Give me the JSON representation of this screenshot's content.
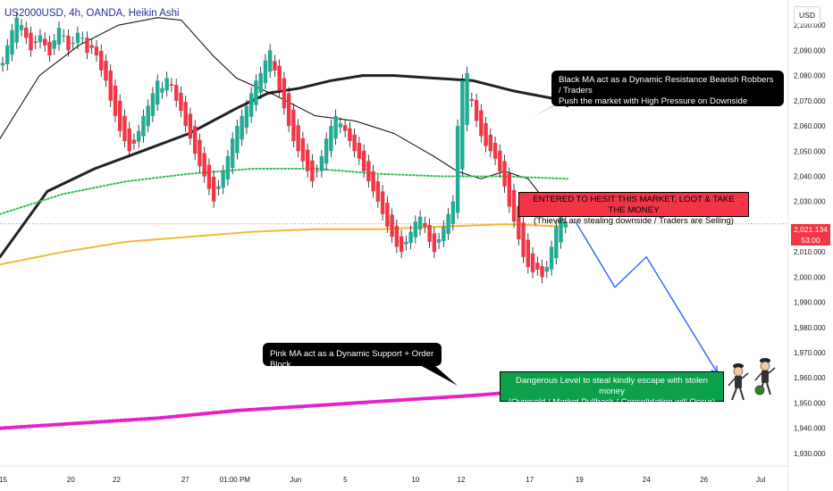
{
  "chart_header": {
    "ticker": "US2000USD, 4h, OANDA, Heikin Ashi",
    "currency": "USD"
  },
  "chart_data": {
    "type": "candlestick",
    "x_ticks": [
      "15",
      "20",
      "22",
      "27",
      "01:00 PM",
      "Jun",
      "5",
      "10",
      "12",
      "17",
      "19",
      "24",
      "26",
      "Jul"
    ],
    "y_ticks": [
      2100,
      2090,
      2080,
      2070,
      2060,
      2050,
      2040,
      2030,
      2020,
      2010,
      2000,
      1990,
      1980,
      1970,
      1960,
      1950,
      1940,
      1930
    ],
    "y_tick_labels": [
      "2,100.000",
      "2,090.000",
      "2,080.000",
      "2,070.000",
      "2,060.000",
      "2,050.000",
      "2,040.000",
      "2,030.000",
      "2,020.000",
      "2,010.000",
      "2,000.000",
      "1,990.000",
      "1,980.000",
      "1,970.000",
      "1,960.000",
      "1,950.000",
      "1,940.000",
      "1,930.000"
    ],
    "ylim": [
      1925,
      2110
    ],
    "last_price": 2021.134,
    "last_price_label": "2,021.134",
    "countdown": "53:00",
    "closes": [
      2085,
      2092,
      2098,
      2103,
      2100,
      2095,
      2090,
      2093,
      2096,
      2092,
      2088,
      2094,
      2099,
      2096,
      2090,
      2093,
      2097,
      2095,
      2089,
      2091,
      2088,
      2082,
      2078,
      2070,
      2064,
      2058,
      2054,
      2050,
      2053,
      2058,
      2064,
      2068,
      2073,
      2078,
      2075,
      2079,
      2076,
      2070,
      2066,
      2060,
      2055,
      2049,
      2044,
      2040,
      2035,
      2030,
      2036,
      2042,
      2048,
      2055,
      2060,
      2064,
      2068,
      2073,
      2078,
      2081,
      2086,
      2090,
      2082,
      2074,
      2067,
      2060,
      2054,
      2050,
      2046,
      2042,
      2038,
      2042,
      2048,
      2055,
      2060,
      2064,
      2061,
      2058,
      2054,
      2050,
      2047,
      2042,
      2038,
      2034,
      2030,
      2025,
      2020,
      2016,
      2012,
      2010,
      2014,
      2018,
      2022,
      2024,
      2020,
      2014,
      2010,
      2015,
      2020,
      2025,
      2030,
      2060,
      2078,
      2081,
      2070,
      2062,
      2056,
      2052,
      2050,
      2047,
      2042,
      2036,
      2028,
      2022,
      2015,
      2008,
      2004,
      2002,
      2003,
      2000,
      2004,
      2012,
      2020,
      2026,
      2022
    ],
    "series": [
      {
        "name": "Black MA",
        "color": "#222222",
        "values": [
          [
            0,
            2008
          ],
          [
            0.06,
            2034
          ],
          [
            0.12,
            2043
          ],
          [
            0.18,
            2050
          ],
          [
            0.24,
            2057
          ],
          [
            0.3,
            2067
          ],
          [
            0.34,
            2073
          ],
          [
            0.38,
            2075
          ],
          [
            0.42,
            2078
          ],
          [
            0.46,
            2080
          ],
          [
            0.5,
            2080
          ],
          [
            0.55,
            2079
          ],
          [
            0.6,
            2078
          ],
          [
            0.65,
            2074
          ],
          [
            0.7,
            2071
          ],
          [
            0.72,
            2068
          ]
        ]
      },
      {
        "name": "Thin Black MA",
        "color": "#000000",
        "values": [
          [
            0,
            2055
          ],
          [
            0.05,
            2080
          ],
          [
            0.1,
            2092
          ],
          [
            0.15,
            2100
          ],
          [
            0.2,
            2103
          ],
          [
            0.23,
            2102
          ],
          [
            0.27,
            2088
          ],
          [
            0.3,
            2079
          ],
          [
            0.35,
            2072
          ],
          [
            0.4,
            2064
          ],
          [
            0.45,
            2062
          ],
          [
            0.5,
            2057
          ],
          [
            0.55,
            2048
          ],
          [
            0.58,
            2042
          ],
          [
            0.61,
            2039
          ],
          [
            0.64,
            2042
          ],
          [
            0.67,
            2039
          ],
          [
            0.69,
            2031
          ],
          [
            0.72,
            2026
          ]
        ]
      },
      {
        "name": "Green MA",
        "color": "#2ebd4a",
        "values": [
          [
            0,
            2025
          ],
          [
            0.08,
            2033
          ],
          [
            0.16,
            2038
          ],
          [
            0.24,
            2041
          ],
          [
            0.32,
            2043
          ],
          [
            0.4,
            2043
          ],
          [
            0.48,
            2041
          ],
          [
            0.56,
            2040
          ],
          [
            0.64,
            2040
          ],
          [
            0.72,
            2039
          ]
        ]
      },
      {
        "name": "Orange MA",
        "color": "#f6b531",
        "values": [
          [
            0,
            2005
          ],
          [
            0.08,
            2010
          ],
          [
            0.16,
            2014
          ],
          [
            0.24,
            2016
          ],
          [
            0.32,
            2018
          ],
          [
            0.4,
            2019
          ],
          [
            0.48,
            2019
          ],
          [
            0.56,
            2020
          ],
          [
            0.64,
            2021
          ],
          [
            0.72,
            2020
          ]
        ]
      },
      {
        "name": "Pink MA",
        "color": "#e521c9",
        "values": [
          [
            0,
            1940
          ],
          [
            0.1,
            1942
          ],
          [
            0.2,
            1944
          ],
          [
            0.3,
            1947
          ],
          [
            0.4,
            1949
          ],
          [
            0.5,
            1951
          ],
          [
            0.6,
            1953
          ],
          [
            0.68,
            1955
          ]
        ]
      }
    ],
    "projection": [
      [
        0.73,
        2022
      ],
      [
        0.78,
        1996
      ],
      [
        0.82,
        2008
      ],
      [
        0.91,
        1962
      ]
    ]
  },
  "annotations": {
    "black_ma_line1": "Black MA act as a Dynamic Resistance Bearish Robbers / Traders",
    "black_ma_line2": "Push the market with High Pressure on Downside",
    "pink_ma": "Pink MA act as a Dynamic Support + Order Block",
    "entry_line1": "ENTERED TO HESIT THIS MARKET, LOOT & TAKE THE MONEY",
    "entry_line2": "(Thieves are stealing downside / Traders are Selling)",
    "target_line1": "Dangerous Level to steal kindly escape with stolen money",
    "target_line2": "(Oversold / Market Pullback / Consolidation will Occur)"
  },
  "colors": {
    "bull": "#22ab94",
    "bear": "#f23645",
    "projection": "#2962ff",
    "text": "#131722"
  }
}
